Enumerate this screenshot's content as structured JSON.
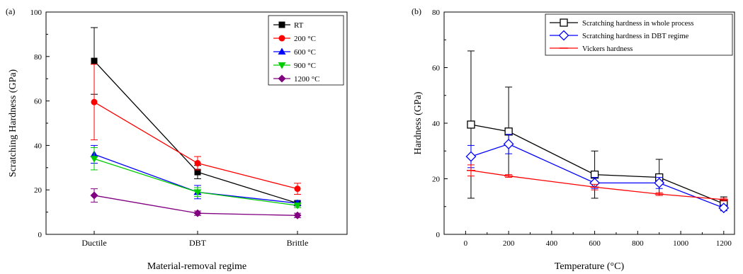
{
  "chart_data": [
    {
      "type": "line",
      "panel_label": "(a)",
      "categories": [
        "Ductile",
        "DBT",
        "Brittle"
      ],
      "xlabel": "Material-removal regime",
      "ylabel": "Scratching Hardness (GPa)",
      "ylim": [
        0,
        100
      ],
      "yticks": [
        0,
        20,
        40,
        60,
        80,
        100
      ],
      "legend_position": "top-right",
      "grid": false,
      "series": [
        {
          "name": "RT",
          "color": "#000000",
          "marker": "square",
          "values": [
            78,
            28,
            14
          ],
          "errors": [
            15,
            3,
            1
          ]
        },
        {
          "name": "200 °C",
          "color": "#ff0000",
          "marker": "circle",
          "values": [
            59.5,
            32,
            20.5
          ],
          "errors": [
            17,
            3,
            2.5
          ]
        },
        {
          "name": "600 °C",
          "color": "#0000ff",
          "marker": "triangle-up",
          "values": [
            36,
            19,
            14
          ],
          "errors": [
            4,
            3,
            1
          ]
        },
        {
          "name": "900 °C",
          "color": "#00cc00",
          "marker": "triangle-down",
          "values": [
            34,
            19,
            13
          ],
          "errors": [
            5,
            2,
            1
          ]
        },
        {
          "name": "1200 °C",
          "color": "#800080",
          "marker": "diamond",
          "values": [
            17.5,
            9.5,
            8.5
          ],
          "errors": [
            3,
            1,
            1
          ]
        }
      ]
    },
    {
      "type": "line",
      "panel_label": "(b)",
      "xlabel": "Temperature (°C)",
      "ylabel": "Hardness (GPa)",
      "xlim": [
        -100,
        1250
      ],
      "xticks": [
        0,
        200,
        400,
        600,
        800,
        1000,
        1200
      ],
      "ylim": [
        0,
        80
      ],
      "yticks": [
        0,
        20,
        40,
        60,
        80
      ],
      "legend_position": "top-right",
      "grid": false,
      "series": [
        {
          "name": "Scratching hardness in whole process",
          "color": "#000000",
          "marker": "open-square",
          "x": [
            25,
            200,
            600,
            900,
            1200
          ],
          "values": [
            39.5,
            37,
            21.5,
            20.5,
            11
          ],
          "errors": [
            26.5,
            16,
            8.5,
            6.5,
            2.5
          ]
        },
        {
          "name": "Scratching hardness in DBT regime",
          "color": "#0000ff",
          "marker": "open-diamond",
          "x": [
            25,
            200,
            600,
            900,
            1200
          ],
          "values": [
            28,
            32.5,
            18.5,
            18.5,
            9.5
          ],
          "errors": [
            4,
            3.5,
            2,
            2,
            1
          ]
        },
        {
          "name": "Vickers hardness",
          "color": "#ff0000",
          "marker": "dash",
          "x": [
            25,
            200,
            600,
            900,
            1200
          ],
          "values": [
            23,
            21,
            17,
            14.5,
            12.5
          ],
          "errors": [
            2,
            0.5,
            1,
            0.5,
            0.5
          ]
        }
      ]
    }
  ]
}
